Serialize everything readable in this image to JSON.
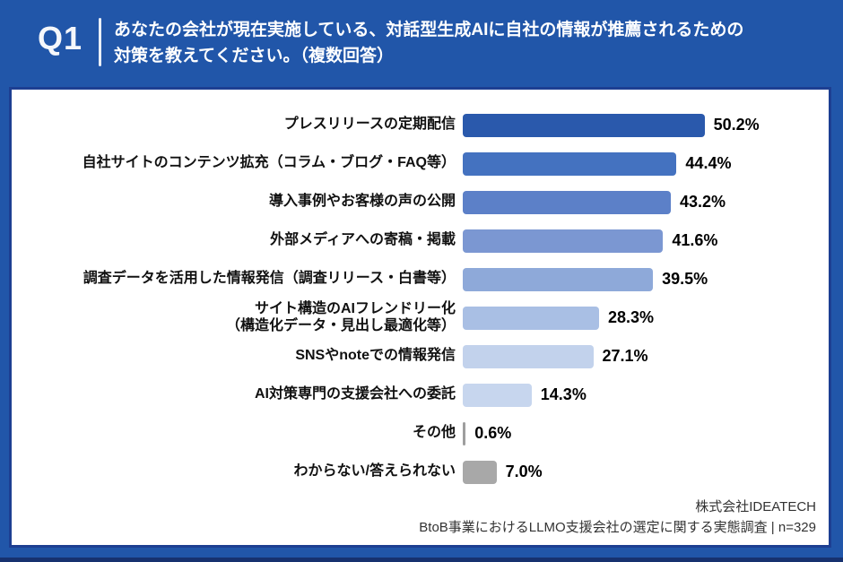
{
  "header": {
    "q_label": "Q1",
    "question_line1": "あなたの会社が現在実施している、対話型生成AIに自社の情報が推薦されるための",
    "question_line2": "対策を教えてください。（複数回答）"
  },
  "footer": {
    "company": "株式会社IDEATECH",
    "survey": "BtoB事業におけるLLMO支援会社の選定に関する実態調査 | n=329"
  },
  "colors": {
    "background": "#2156a9",
    "panel_border": "#1d3f92",
    "bottom_strip": "#17316f",
    "text_dark": "#111111"
  },
  "chart_data": {
    "type": "bar",
    "orientation": "horizontal",
    "title": "あなたの会社が現在実施している、対話型生成AIに自社の情報が推薦されるための対策を教えてください。（複数回答）",
    "unit": "%",
    "sample_note": "n=329",
    "xlim": [
      0,
      55
    ],
    "grid": false,
    "legend": false,
    "categories": [
      "プレスリリースの定期配信",
      "自社サイトのコンテンツ拡充（コラム・ブログ・FAQ等）",
      "導入事例やお客様の声の公開",
      "外部メディアへの寄稿・掲載",
      "調査データを活用した情報発信（調査リリース・白書等）",
      "サイト構造のAIフレンドリー化\n（構造化データ・見出し最適化等）",
      "SNSやnoteでの情報発信",
      "AI対策専門の支援会社への委託",
      "その他",
      "わからない/答えられない"
    ],
    "values": [
      50.2,
      44.4,
      43.2,
      41.6,
      39.5,
      28.3,
      27.1,
      14.3,
      0.6,
      7.0
    ],
    "value_labels": [
      "50.2%",
      "44.4%",
      "43.2%",
      "41.6%",
      "39.5%",
      "28.3%",
      "27.1%",
      "14.3%",
      "0.6%",
      "7.0%"
    ],
    "bar_colors": [
      "#2a59ac",
      "#4472c0",
      "#5c80c8",
      "#7b97d2",
      "#8ea9d9",
      "#a9bfe4",
      "#c2d2ec",
      "#c7d6ee",
      "#9e9e9e",
      "#a8a8a8"
    ]
  }
}
